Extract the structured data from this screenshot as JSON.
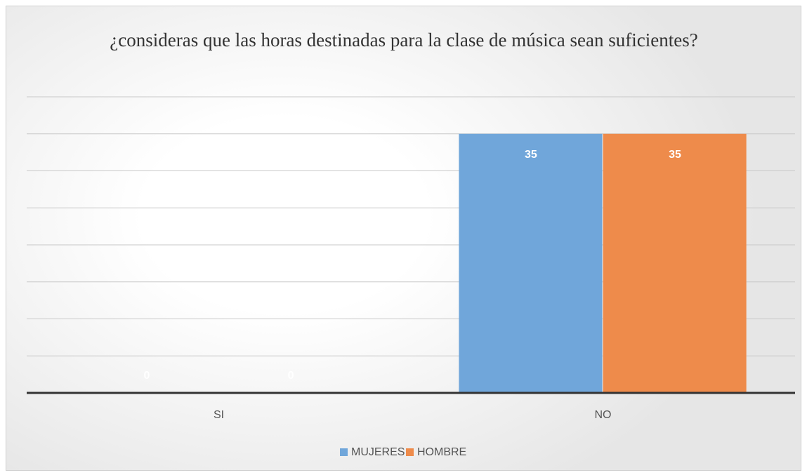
{
  "chart_data": {
    "type": "bar",
    "title": "¿consideras que las horas destinadas para la clase de música sean suficientes?",
    "categories": [
      "SI",
      "NO"
    ],
    "series": [
      {
        "name": "MUJERES",
        "color": "#70a6da",
        "values": [
          0,
          35
        ]
      },
      {
        "name": "HOMBRE",
        "color": "#ee8b4b",
        "values": [
          0,
          35
        ]
      }
    ],
    "ylim": [
      0,
      40
    ],
    "yticks": [
      0,
      5,
      10,
      15,
      20,
      25,
      30,
      35,
      40
    ],
    "grid": true,
    "legend": "bottom"
  }
}
